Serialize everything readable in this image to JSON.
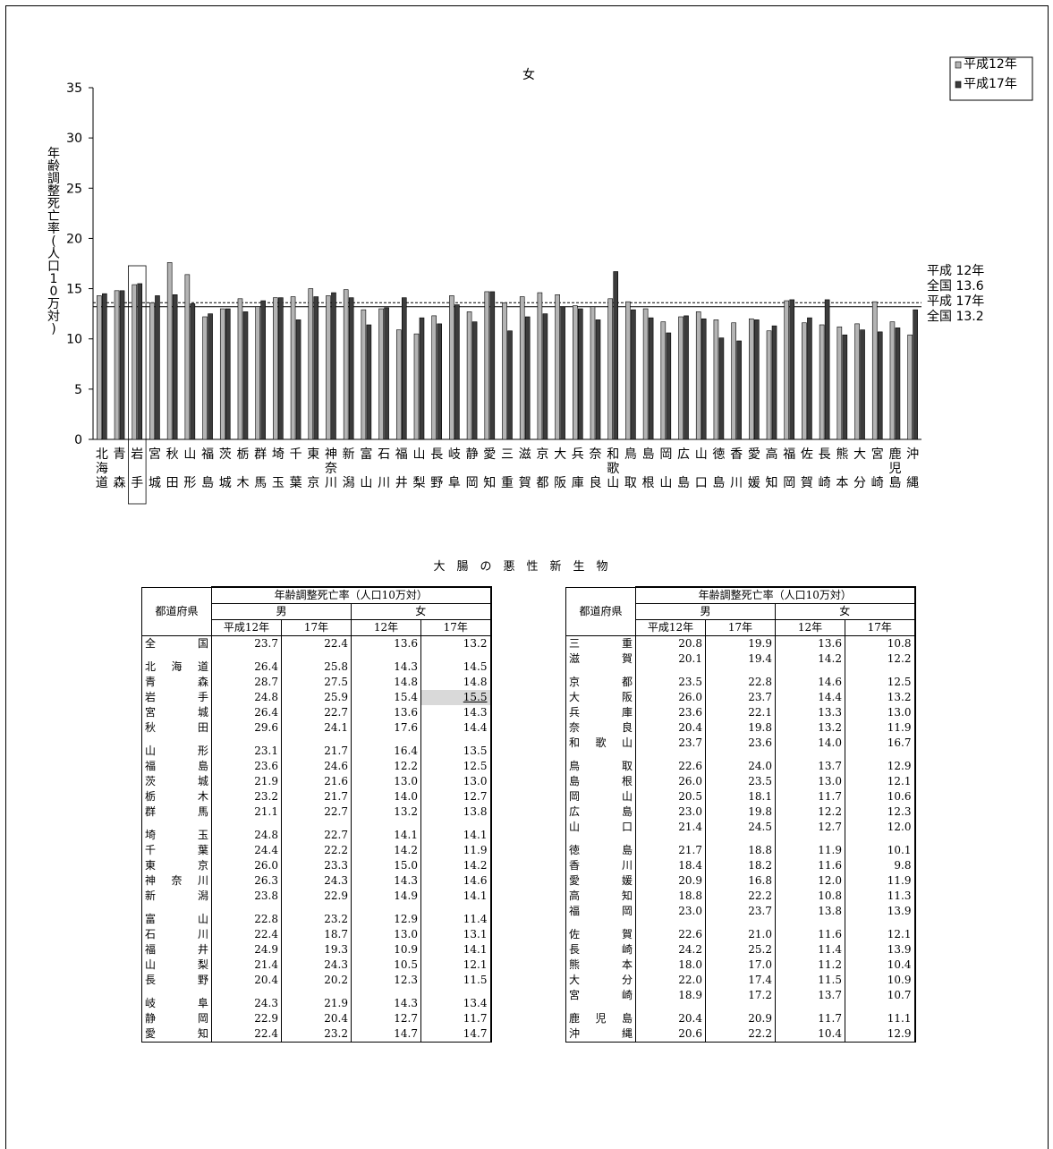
{
  "chart_data": {
    "type": "bar",
    "title": "女",
    "ylabel": "年齢調整死亡率(人口10万対)",
    "ylim": [
      0,
      35
    ],
    "yticks": [
      "0",
      "5",
      "10",
      "15",
      "20",
      "25",
      "30",
      "35"
    ],
    "highlighted_category": "岩手",
    "categories": [
      "北海道",
      "青森",
      "岩手",
      "宮城",
      "秋田",
      "山形",
      "福島",
      "茨城",
      "栃木",
      "群馬",
      "埼玉",
      "千葉",
      "東京",
      "神奈川",
      "新潟",
      "富山",
      "石川",
      "福井",
      "山梨",
      "長野",
      "岐阜",
      "静岡",
      "愛知",
      "三重",
      "滋賀",
      "京都",
      "大阪",
      "兵庫",
      "奈良",
      "和歌山",
      "鳥取",
      "島根",
      "岡山",
      "広島",
      "山口",
      "徳島",
      "香川",
      "愛媛",
      "高知",
      "福岡",
      "佐賀",
      "長崎",
      "熊本",
      "大分",
      "宮崎",
      "鹿児島",
      "沖縄"
    ],
    "series": [
      {
        "name": "平成12年",
        "color": "#b4b4b4",
        "values": [
          14.3,
          14.8,
          15.4,
          13.6,
          17.6,
          16.4,
          12.2,
          13.0,
          14.0,
          13.2,
          14.1,
          14.2,
          15.0,
          14.3,
          14.9,
          12.9,
          13.0,
          10.9,
          10.5,
          12.3,
          14.3,
          12.7,
          14.7,
          13.6,
          14.2,
          14.6,
          14.4,
          13.3,
          13.2,
          14.0,
          13.7,
          13.0,
          11.7,
          12.2,
          12.7,
          11.9,
          11.6,
          12.0,
          10.8,
          13.8,
          11.6,
          11.4,
          11.2,
          11.5,
          13.7,
          11.7,
          10.4
        ]
      },
      {
        "name": "平成17年",
        "color": "#3c3c3c",
        "values": [
          14.5,
          14.8,
          15.5,
          14.3,
          14.4,
          13.5,
          12.5,
          13.0,
          12.7,
          13.8,
          14.1,
          11.9,
          14.2,
          14.6,
          14.1,
          11.4,
          13.1,
          14.1,
          12.1,
          11.5,
          13.4,
          11.7,
          14.7,
          10.8,
          12.2,
          12.5,
          13.2,
          13.0,
          11.9,
          16.7,
          12.9,
          12.1,
          10.6,
          12.3,
          12.0,
          10.1,
          9.8,
          11.9,
          11.3,
          13.9,
          12.1,
          13.9,
          10.4,
          10.9,
          10.7,
          11.1,
          12.9
        ]
      }
    ],
    "reference_lines": [
      {
        "label_line1": "平成 12年",
        "label_line2": "全国 13.6",
        "value": 13.6,
        "style": "dashed"
      },
      {
        "label_line1": "平成 17年",
        "label_line2": "全国 13.2",
        "value": 13.2,
        "style": "solid"
      }
    ],
    "legend": {
      "position": "top-right",
      "entries": [
        "平成12年",
        "平成17年"
      ]
    }
  },
  "tables": {
    "title": "大腸の悪性新生物",
    "header": {
      "pref": "都道府県",
      "group": "年齢調整死亡率",
      "unit": "（人口10万対）",
      "male": "男",
      "female": "女",
      "y1": "平成12年",
      "y2": "17年",
      "y3": "12年",
      "y4": "17年"
    },
    "left": [
      [
        {
          "name": "全国",
          "m12": "23.7",
          "m17": "22.4",
          "f12": "13.6",
          "f17": "13.2"
        }
      ],
      [
        {
          "name": "北海道",
          "m12": "26.4",
          "m17": "25.8",
          "f12": "14.3",
          "f17": "14.5"
        },
        {
          "name": "青森",
          "m12": "28.7",
          "m17": "27.5",
          "f12": "14.8",
          "f17": "14.8"
        },
        {
          "name": "岩手",
          "m12": "24.8",
          "m17": "25.9",
          "f12": "15.4",
          "f17": "15.5",
          "hl": true
        },
        {
          "name": "宮城",
          "m12": "26.4",
          "m17": "22.7",
          "f12": "13.6",
          "f17": "14.3"
        },
        {
          "name": "秋田",
          "m12": "29.6",
          "m17": "24.1",
          "f12": "17.6",
          "f17": "14.4"
        }
      ],
      [
        {
          "name": "山形",
          "m12": "23.1",
          "m17": "21.7",
          "f12": "16.4",
          "f17": "13.5"
        },
        {
          "name": "福島",
          "m12": "23.6",
          "m17": "24.6",
          "f12": "12.2",
          "f17": "12.5"
        },
        {
          "name": "茨城",
          "m12": "21.9",
          "m17": "21.6",
          "f12": "13.0",
          "f17": "13.0"
        },
        {
          "name": "栃木",
          "m12": "23.2",
          "m17": "21.7",
          "f12": "14.0",
          "f17": "12.7"
        },
        {
          "name": "群馬",
          "m12": "21.1",
          "m17": "22.7",
          "f12": "13.2",
          "f17": "13.8"
        }
      ],
      [
        {
          "name": "埼玉",
          "m12": "24.8",
          "m17": "22.7",
          "f12": "14.1",
          "f17": "14.1"
        },
        {
          "name": "千葉",
          "m12": "24.4",
          "m17": "22.2",
          "f12": "14.2",
          "f17": "11.9"
        },
        {
          "name": "東京",
          "m12": "26.0",
          "m17": "23.3",
          "f12": "15.0",
          "f17": "14.2"
        },
        {
          "name": "神奈川",
          "m12": "26.3",
          "m17": "24.3",
          "f12": "14.3",
          "f17": "14.6"
        },
        {
          "name": "新潟",
          "m12": "23.8",
          "m17": "22.9",
          "f12": "14.9",
          "f17": "14.1"
        }
      ],
      [
        {
          "name": "富山",
          "m12": "22.8",
          "m17": "23.2",
          "f12": "12.9",
          "f17": "11.4"
        },
        {
          "name": "石川",
          "m12": "22.4",
          "m17": "18.7",
          "f12": "13.0",
          "f17": "13.1"
        },
        {
          "name": "福井",
          "m12": "24.9",
          "m17": "19.3",
          "f12": "10.9",
          "f17": "14.1"
        },
        {
          "name": "山梨",
          "m12": "21.4",
          "m17": "24.3",
          "f12": "10.5",
          "f17": "12.1"
        },
        {
          "name": "長野",
          "m12": "20.4",
          "m17": "20.2",
          "f12": "12.3",
          "f17": "11.5"
        }
      ],
      [
        {
          "name": "岐阜",
          "m12": "24.3",
          "m17": "21.9",
          "f12": "14.3",
          "f17": "13.4"
        },
        {
          "name": "静岡",
          "m12": "22.9",
          "m17": "20.4",
          "f12": "12.7",
          "f17": "11.7"
        },
        {
          "name": "愛知",
          "m12": "22.4",
          "m17": "23.2",
          "f12": "14.7",
          "f17": "14.7"
        }
      ]
    ],
    "right": [
      [
        {
          "name": "三重",
          "m12": "20.8",
          "m17": "19.9",
          "f12": "13.6",
          "f17": "10.8"
        },
        {
          "name": "滋賀",
          "m12": "20.1",
          "m17": "19.4",
          "f12": "14.2",
          "f17": "12.2"
        }
      ],
      [
        {
          "name": "京都",
          "m12": "23.5",
          "m17": "22.8",
          "f12": "14.6",
          "f17": "12.5"
        },
        {
          "name": "大阪",
          "m12": "26.0",
          "m17": "23.7",
          "f12": "14.4",
          "f17": "13.2"
        },
        {
          "name": "兵庫",
          "m12": "23.6",
          "m17": "22.1",
          "f12": "13.3",
          "f17": "13.0"
        },
        {
          "name": "奈良",
          "m12": "20.4",
          "m17": "19.8",
          "f12": "13.2",
          "f17": "11.9"
        },
        {
          "name": "和歌山",
          "m12": "23.7",
          "m17": "23.6",
          "f12": "14.0",
          "f17": "16.7"
        }
      ],
      [
        {
          "name": "鳥取",
          "m12": "22.6",
          "m17": "24.0",
          "f12": "13.7",
          "f17": "12.9"
        },
        {
          "name": "島根",
          "m12": "26.0",
          "m17": "23.5",
          "f12": "13.0",
          "f17": "12.1"
        },
        {
          "name": "岡山",
          "m12": "20.5",
          "m17": "18.1",
          "f12": "11.7",
          "f17": "10.6"
        },
        {
          "name": "広島",
          "m12": "23.0",
          "m17": "19.8",
          "f12": "12.2",
          "f17": "12.3"
        },
        {
          "name": "山口",
          "m12": "21.4",
          "m17": "24.5",
          "f12": "12.7",
          "f17": "12.0"
        }
      ],
      [
        {
          "name": "徳島",
          "m12": "21.7",
          "m17": "18.8",
          "f12": "11.9",
          "f17": "10.1"
        },
        {
          "name": "香川",
          "m12": "18.4",
          "m17": "18.2",
          "f12": "11.6",
          "f17": "9.8"
        },
        {
          "name": "愛媛",
          "m12": "20.9",
          "m17": "16.8",
          "f12": "12.0",
          "f17": "11.9"
        },
        {
          "name": "高知",
          "m12": "18.8",
          "m17": "22.2",
          "f12": "10.8",
          "f17": "11.3"
        },
        {
          "name": "福岡",
          "m12": "23.0",
          "m17": "23.7",
          "f12": "13.8",
          "f17": "13.9"
        }
      ],
      [
        {
          "name": "佐賀",
          "m12": "22.6",
          "m17": "21.0",
          "f12": "11.6",
          "f17": "12.1"
        },
        {
          "name": "長崎",
          "m12": "24.2",
          "m17": "25.2",
          "f12": "11.4",
          "f17": "13.9"
        },
        {
          "name": "熊本",
          "m12": "18.0",
          "m17": "17.0",
          "f12": "11.2",
          "f17": "10.4"
        },
        {
          "name": "大分",
          "m12": "22.0",
          "m17": "17.4",
          "f12": "11.5",
          "f17": "10.9"
        },
        {
          "name": "宮崎",
          "m12": "18.9",
          "m17": "17.2",
          "f12": "13.7",
          "f17": "10.7"
        }
      ],
      [
        {
          "name": "鹿児島",
          "m12": "20.4",
          "m17": "20.9",
          "f12": "11.7",
          "f17": "11.1"
        },
        {
          "name": "沖縄",
          "m12": "20.6",
          "m17": "22.2",
          "f12": "10.4",
          "f17": "12.9"
        }
      ]
    ]
  }
}
